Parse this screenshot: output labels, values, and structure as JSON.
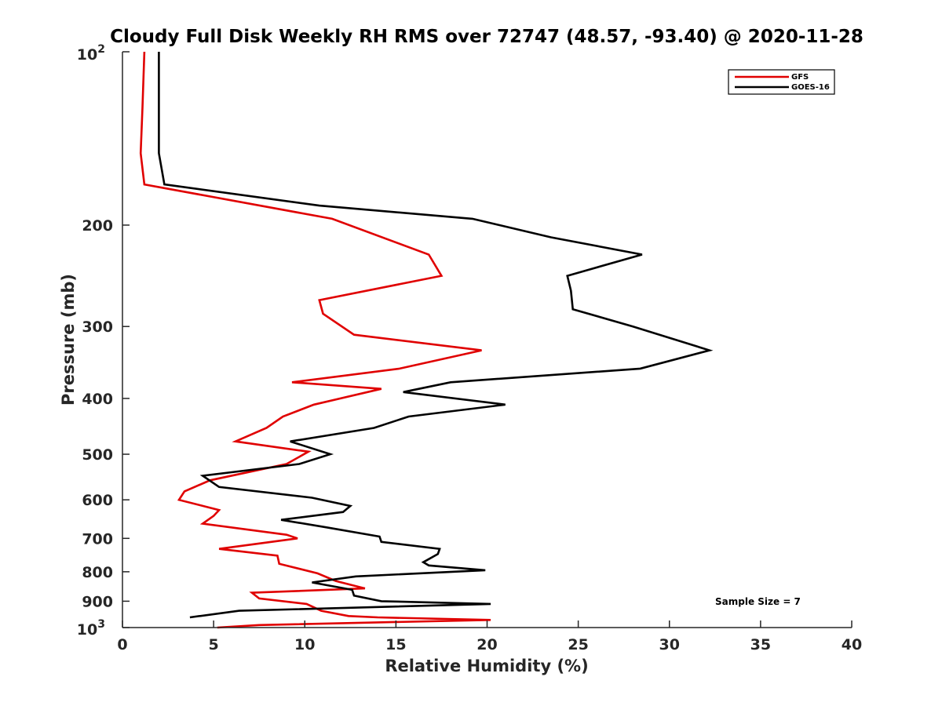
{
  "chart_data": {
    "type": "line",
    "title": "Cloudy Full Disk Weekly RH RMS over 72747 (48.57, -93.40) @ 2020-11-28",
    "xlabel": "Relative Humidity (%)",
    "ylabel": "Pressure (mb)",
    "xlim": [
      0,
      40
    ],
    "ylim": [
      100,
      1000
    ],
    "y_scale": "log",
    "y_reversed": true,
    "grid": false,
    "legend_position": "top-right",
    "x_ticks": [
      "0",
      "5",
      "10",
      "15",
      "20",
      "25",
      "30",
      "35",
      "40"
    ],
    "x_tick_values": [
      0,
      5,
      10,
      15,
      20,
      25,
      30,
      35,
      40
    ],
    "y_ticks": [
      "200",
      "300",
      "400",
      "500",
      "600",
      "700",
      "800",
      "900"
    ],
    "y_tick_values": [
      200,
      300,
      400,
      500,
      600,
      700,
      800,
      900
    ],
    "y_tick_base": "10",
    "y_tick_exp_top": "2",
    "y_tick_exp_bottom": "3",
    "annotation": "Sample Size = 7",
    "series": [
      {
        "name": "GFS",
        "color": "#e00000",
        "points": [
          [
            1.2,
            100
          ],
          [
            1.1,
            125
          ],
          [
            1.0,
            150
          ],
          [
            1.2,
            170
          ],
          [
            11.5,
            195
          ],
          [
            16.8,
            225
          ],
          [
            17.5,
            245
          ],
          [
            10.8,
            270
          ],
          [
            11.0,
            285
          ],
          [
            12.7,
            310
          ],
          [
            19.7,
            330
          ],
          [
            15.2,
            355
          ],
          [
            9.3,
            375
          ],
          [
            14.2,
            385
          ],
          [
            10.5,
            410
          ],
          [
            8.8,
            430
          ],
          [
            7.9,
            450
          ],
          [
            6.2,
            475
          ],
          [
            10.2,
            495
          ],
          [
            9.0,
            520
          ],
          [
            4.8,
            555
          ],
          [
            3.4,
            580
          ],
          [
            3.1,
            600
          ],
          [
            5.3,
            625
          ],
          [
            5.0,
            640
          ],
          [
            4.4,
            660
          ],
          [
            9.0,
            690
          ],
          [
            9.6,
            700
          ],
          [
            5.3,
            730
          ],
          [
            8.5,
            750
          ],
          [
            8.6,
            775
          ],
          [
            10.7,
            805
          ],
          [
            11.7,
            830
          ],
          [
            13.3,
            855
          ],
          [
            7.1,
            870
          ],
          [
            7.5,
            890
          ],
          [
            10.1,
            910
          ],
          [
            10.9,
            935
          ],
          [
            12.4,
            955
          ],
          [
            14.0,
            960
          ],
          [
            20.2,
            970
          ],
          [
            7.5,
            990
          ],
          [
            5.2,
            1000
          ]
        ]
      },
      {
        "name": "GOES-16",
        "color": "#000000",
        "points": [
          [
            2.0,
            100
          ],
          [
            2.0,
            150
          ],
          [
            2.3,
            170
          ],
          [
            10.8,
            185
          ],
          [
            19.2,
            195
          ],
          [
            23.5,
            210
          ],
          [
            28.5,
            225
          ],
          [
            24.4,
            245
          ],
          [
            24.6,
            260
          ],
          [
            24.7,
            280
          ],
          [
            28.0,
            300
          ],
          [
            32.2,
            330
          ],
          [
            28.4,
            355
          ],
          [
            18.0,
            375
          ],
          [
            15.4,
            390
          ],
          [
            21.0,
            410
          ],
          [
            15.7,
            430
          ],
          [
            13.8,
            450
          ],
          [
            9.2,
            475
          ],
          [
            11.4,
            500
          ],
          [
            9.7,
            520
          ],
          [
            4.4,
            545
          ],
          [
            5.3,
            570
          ],
          [
            10.4,
            595
          ],
          [
            12.5,
            615
          ],
          [
            12.1,
            630
          ],
          [
            8.7,
            650
          ],
          [
            11.2,
            670
          ],
          [
            14.1,
            695
          ],
          [
            14.2,
            710
          ],
          [
            17.4,
            730
          ],
          [
            17.3,
            745
          ],
          [
            16.5,
            770
          ],
          [
            16.8,
            780
          ],
          [
            19.9,
            795
          ],
          [
            12.8,
            815
          ],
          [
            10.4,
            835
          ],
          [
            12.6,
            860
          ],
          [
            12.7,
            880
          ],
          [
            14.2,
            900
          ],
          [
            20.2,
            910
          ],
          [
            6.4,
            935
          ],
          [
            3.7,
            960
          ]
        ]
      }
    ]
  }
}
